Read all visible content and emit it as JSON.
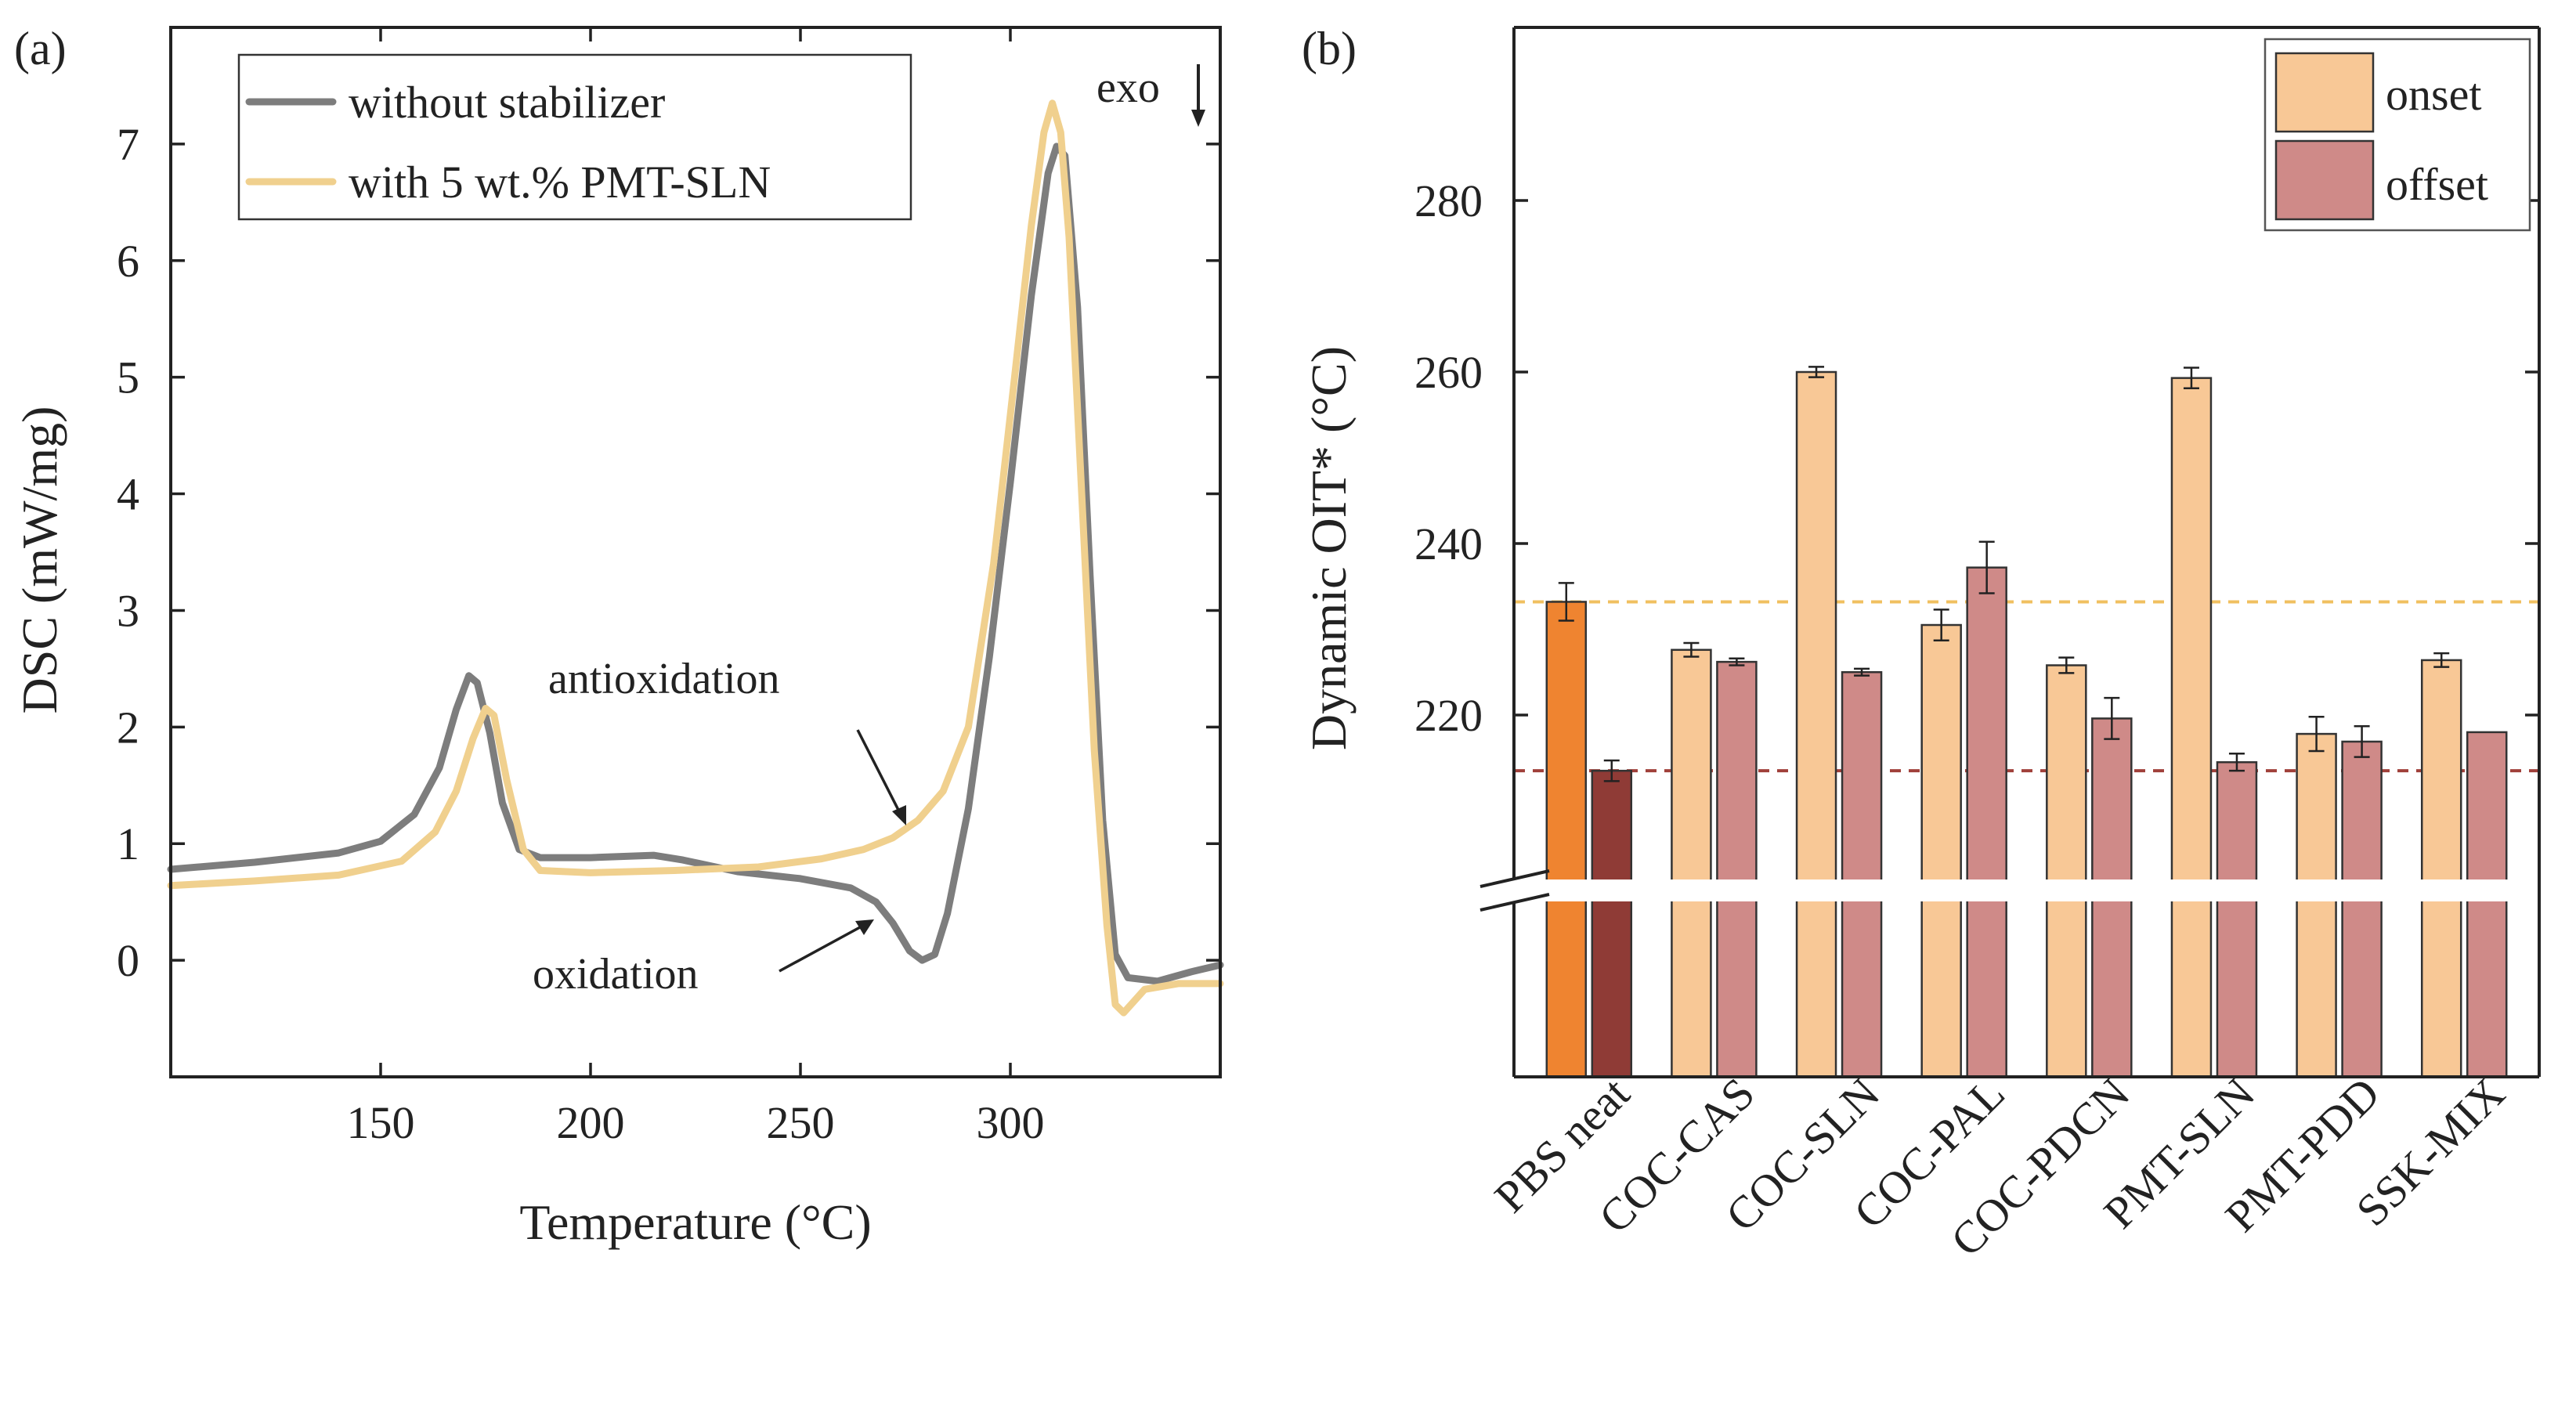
{
  "chart_data": [
    {
      "panel": "(a)",
      "type": "line",
      "xlabel": "Temperature (°C)",
      "ylabel": "DSC (mW/mg)",
      "xlim": [
        100,
        350
      ],
      "ylim": [
        -1,
        8
      ],
      "xticks": [
        "150",
        "200",
        "250",
        "300"
      ],
      "xtick_values": [
        150,
        200,
        250,
        300
      ],
      "yticks": [
        "0",
        "1",
        "2",
        "3",
        "4",
        "5",
        "6",
        "7"
      ],
      "ytick_values": [
        0,
        1,
        2,
        3,
        4,
        5,
        6,
        7
      ],
      "legend_position": "top-left",
      "series": [
        {
          "name": "without stabilizer",
          "color": "#7d7d7d",
          "points": [
            [
              100,
              0.78
            ],
            [
              120,
              0.84
            ],
            [
              140,
              0.92
            ],
            [
              150,
              1.02
            ],
            [
              158,
              1.25
            ],
            [
              164,
              1.65
            ],
            [
              168,
              2.15
            ],
            [
              171,
              2.44
            ],
            [
              173,
              2.38
            ],
            [
              176,
              1.95
            ],
            [
              179,
              1.35
            ],
            [
              183,
              0.95
            ],
            [
              188,
              0.88
            ],
            [
              200,
              0.88
            ],
            [
              215,
              0.9
            ],
            [
              222,
              0.86
            ],
            [
              235,
              0.76
            ],
            [
              250,
              0.7
            ],
            [
              262,
              0.62
            ],
            [
              268,
              0.5
            ],
            [
              272,
              0.32
            ],
            [
              276,
              0.08
            ],
            [
              279,
              0.0
            ],
            [
              282,
              0.05
            ],
            [
              285,
              0.4
            ],
            [
              290,
              1.3
            ],
            [
              295,
              2.6
            ],
            [
              300,
              4.1
            ],
            [
              305,
              5.7
            ],
            [
              309,
              6.75
            ],
            [
              311,
              6.98
            ],
            [
              313,
              6.9
            ],
            [
              316,
              5.6
            ],
            [
              319,
              3.3
            ],
            [
              322,
              1.2
            ],
            [
              325,
              0.05
            ],
            [
              328,
              -0.15
            ],
            [
              335,
              -0.18
            ],
            [
              343,
              -0.1
            ],
            [
              350,
              -0.04
            ]
          ]
        },
        {
          "name": "with 5 wt.% PMT-SLN",
          "color": "#f0d08e",
          "points": [
            [
              100,
              0.64
            ],
            [
              120,
              0.68
            ],
            [
              140,
              0.73
            ],
            [
              155,
              0.85
            ],
            [
              163,
              1.1
            ],
            [
              168,
              1.45
            ],
            [
              172,
              1.9
            ],
            [
              175,
              2.16
            ],
            [
              177,
              2.1
            ],
            [
              180,
              1.55
            ],
            [
              184,
              0.95
            ],
            [
              188,
              0.77
            ],
            [
              200,
              0.75
            ],
            [
              220,
              0.77
            ],
            [
              240,
              0.8
            ],
            [
              255,
              0.87
            ],
            [
              265,
              0.95
            ],
            [
              272,
              1.05
            ],
            [
              278,
              1.2
            ],
            [
              284,
              1.45
            ],
            [
              290,
              2.0
            ],
            [
              296,
              3.4
            ],
            [
              301,
              5.0
            ],
            [
              305,
              6.3
            ],
            [
              308,
              7.1
            ],
            [
              310,
              7.35
            ],
            [
              312,
              7.1
            ],
            [
              314,
              6.2
            ],
            [
              317,
              4.0
            ],
            [
              320,
              1.8
            ],
            [
              323,
              0.3
            ],
            [
              325,
              -0.38
            ],
            [
              327,
              -0.45
            ],
            [
              332,
              -0.25
            ],
            [
              340,
              -0.2
            ],
            [
              350,
              -0.2
            ]
          ]
        }
      ],
      "annotations": [
        {
          "text": "antioxidation",
          "x": 275,
          "y": 1.2
        },
        {
          "text": "oxidation",
          "x": 270,
          "y": 0.35
        },
        {
          "text": "exo"
        }
      ]
    },
    {
      "panel": "(b)",
      "type": "bar",
      "ylabel": "Dynamic OIT* (°C)",
      "yticks": [
        "220",
        "240",
        "260",
        "280"
      ],
      "ytick_values": [
        220,
        240,
        260,
        280
      ],
      "ylim": [
        175,
        300
      ],
      "axis_break_between": [
        200,
        205
      ],
      "legend_position": "top-right",
      "categories": [
        "PBS neat",
        "COC-CAS",
        "COC-SLN",
        "COC-PAL",
        "COC-PDCN",
        "PMT-SLN",
        "PMT-PDD",
        "SSK-MIX"
      ],
      "series": [
        {
          "name": "onset",
          "color": "#f8c896",
          "highlight_color": "#ef8430",
          "values": [
            233.2,
            227.6,
            260.0,
            230.5,
            225.8,
            259.3,
            217.8,
            226.4
          ],
          "errors": [
            2.2,
            0.8,
            0.6,
            1.8,
            0.9,
            1.2,
            2.0,
            0.8
          ]
        },
        {
          "name": "offset",
          "color": "#cf8a88",
          "highlight_color": "#8f3b36",
          "values": [
            213.5,
            226.2,
            225.0,
            237.2,
            219.6,
            214.5,
            216.9,
            218.0
          ],
          "errors": [
            1.2,
            0.4,
            0.4,
            3.0,
            2.4,
            1.0,
            1.8,
            0.0
          ]
        }
      ],
      "reference_lines": [
        {
          "value": 233.2,
          "color": "#f0c060"
        },
        {
          "value": 213.5,
          "color": "#a0403a"
        }
      ]
    }
  ],
  "labels": {
    "exo": "exo",
    "antioxidation": "antioxidation",
    "oxidation": "oxidation"
  }
}
